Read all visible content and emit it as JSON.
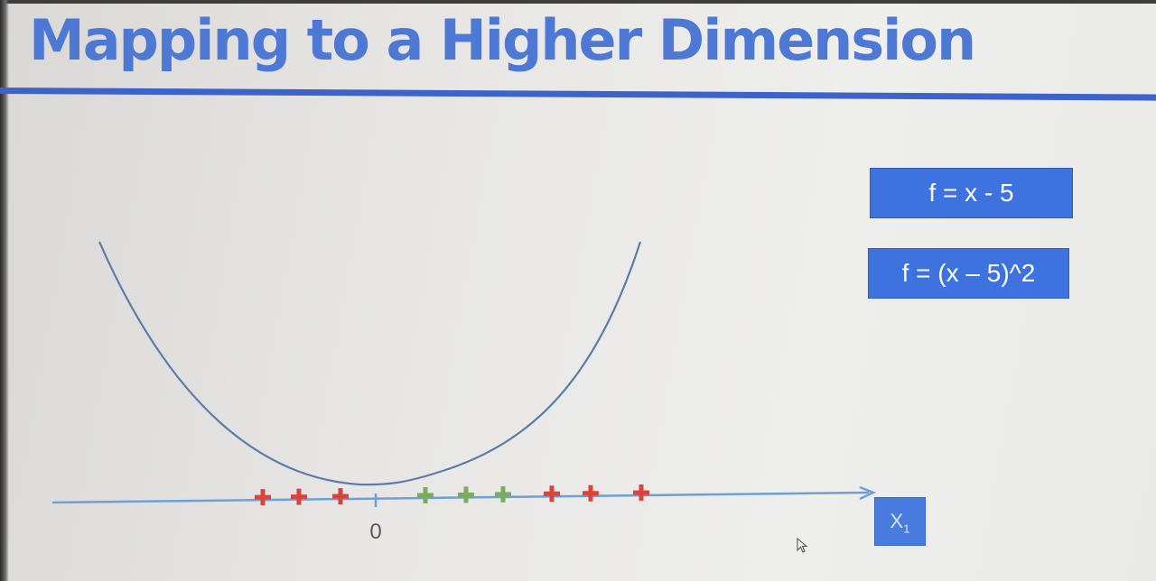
{
  "slide": {
    "title": "Mapping to a Higher Dimension"
  },
  "formulas": {
    "linear": "f = x - 5",
    "quadratic": "f = (x – 5)^2"
  },
  "axis": {
    "label_main": "X",
    "label_sub": "1",
    "zero_tick_label": "0"
  },
  "points": [
    {
      "class": "negative",
      "color": "#d9443a"
    },
    {
      "class": "negative",
      "color": "#d9443a"
    },
    {
      "class": "negative",
      "color": "#d9443a"
    },
    {
      "class": "positive",
      "color": "#7dab5c"
    },
    {
      "class": "positive",
      "color": "#7dab5c"
    },
    {
      "class": "positive",
      "color": "#7dab5c"
    },
    {
      "class": "negative",
      "color": "#d9443a"
    },
    {
      "class": "negative",
      "color": "#d9443a"
    },
    {
      "class": "negative",
      "color": "#d9443a"
    }
  ],
  "colors": {
    "title": "#4d78d4",
    "accent": "#3e72de",
    "curve": "#5b7ea8",
    "axis": "#6f9fd8"
  }
}
